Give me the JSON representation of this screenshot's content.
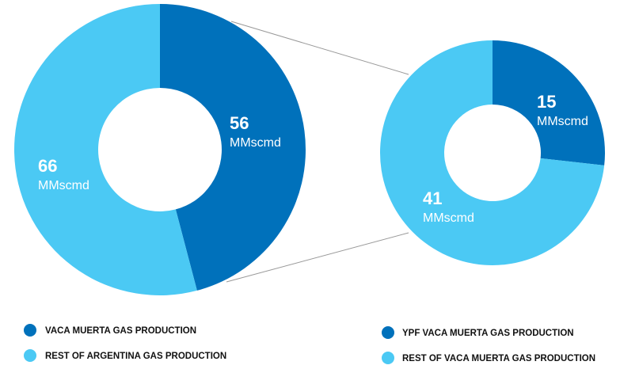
{
  "chart_data": [
    {
      "type": "pie",
      "donut": true,
      "unit": "MMscmd",
      "series": [
        {
          "name": "VACA MUERTA GAS PRODUCTION",
          "color": "#0071bb",
          "values": [
            56
          ]
        },
        {
          "name": "REST OF ARGENTINA GAS PRODUCTION",
          "color": "#4bc9f4",
          "values": [
            66
          ]
        }
      ]
    },
    {
      "type": "pie",
      "donut": true,
      "unit": "MMscmd",
      "series": [
        {
          "name": "YPF VACA MUERTA GAS PRODUCTION",
          "color": "#0071bb",
          "values": [
            15
          ]
        },
        {
          "name": "REST OF VACA MUERTA GAS PRODUCTION",
          "color": "#4bc9f4",
          "values": [
            41
          ]
        }
      ]
    }
  ]
}
